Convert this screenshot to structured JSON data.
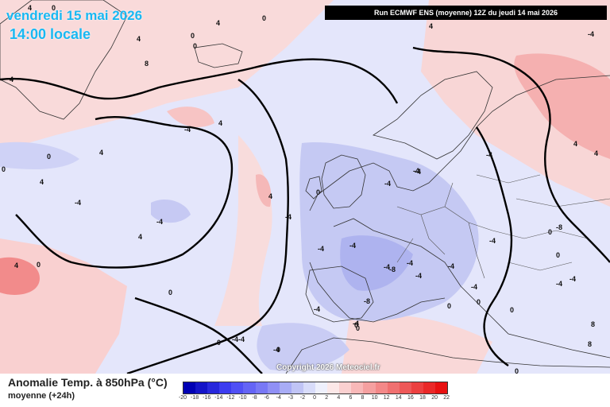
{
  "header": {
    "date": "vendredi 15 mai 2026",
    "time": "14:00 locale",
    "run": "Run ECMWF ENS (moyenne) 12Z du jeudi 14 mai 2026"
  },
  "map": {
    "copyright": "Copyright 2026 Meteociel.fr",
    "colors": {
      "ocean_warm": "#f9dada",
      "cold_light": "#dfe3fa",
      "cold_mid": "#c7cbf5",
      "warm_mid": "#f7bcbc",
      "warm_strong": "#f28b8b",
      "contour": "#000000",
      "border": "#333333"
    },
    "contour_labels": [
      "4",
      "0",
      "4",
      "0",
      "4",
      "0",
      "8",
      "4",
      "-4",
      "4",
      "0",
      "4",
      "0",
      "-4",
      "4",
      "-4",
      "4",
      "-4",
      "0",
      "0",
      "-4",
      "-4",
      "-4",
      "4",
      "4",
      "-4",
      "-4",
      "-4",
      "-4",
      "-8",
      "-8",
      "-4",
      "-4",
      "-4",
      "-8",
      "0",
      "0",
      "-4",
      "-4",
      "0",
      "0",
      "0",
      "0",
      "-4",
      "4",
      "4",
      "8",
      "8",
      "0",
      "0",
      "-4",
      "-4",
      "-4",
      "0",
      "0",
      "-4",
      "-4",
      "0",
      "-4",
      "0",
      "-4",
      "4"
    ]
  },
  "legend": {
    "title": "Anomalie Temp. à 850hPa (°C)",
    "subtitle": "moyenne  (+24h)",
    "scale_values": [
      "-20",
      "-18",
      "-16",
      "-14",
      "-12",
      "-10",
      "-8",
      "-6",
      "-4",
      "-3",
      "-2",
      "0",
      "2",
      "4",
      "6",
      "8",
      "10",
      "12",
      "14",
      "16",
      "18",
      "20",
      "22"
    ],
    "scale_colors": [
      "#0000b4",
      "#1414c8",
      "#2828dc",
      "#3c3cf0",
      "#5050f5",
      "#6464f5",
      "#7878f5",
      "#9090f5",
      "#a8acf5",
      "#c0c4f5",
      "#d8dcfa",
      "#eef0fc",
      "#fce8e8",
      "#fad0d0",
      "#f8b8b8",
      "#f5a0a0",
      "#f38888",
      "#f07070",
      "#ee5858",
      "#ec4040",
      "#ea2828",
      "#e81010"
    ]
  }
}
